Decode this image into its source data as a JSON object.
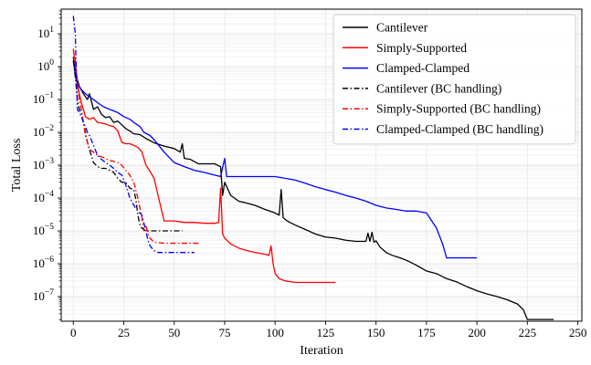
{
  "chart_data": {
    "type": "line",
    "title": "",
    "xlabel": "Iteration",
    "ylabel": "Total Loss",
    "xlim": [
      -6,
      252
    ],
    "ylim_log10": [
      -7.75,
      1.75
    ],
    "yscale": "log",
    "grid": true,
    "legend_position": "top-right",
    "xticks": [
      0,
      25,
      50,
      75,
      100,
      125,
      150,
      175,
      200,
      225,
      250
    ],
    "yticks_exp": [
      1,
      0,
      -1,
      -2,
      -3,
      -4,
      -5,
      -6,
      -7
    ],
    "ytick_base": "10",
    "series": [
      {
        "name": "Cantilever",
        "color": "#000000",
        "dash": "solid",
        "x": [
          0,
          1,
          2,
          3,
          5,
          7,
          8,
          10,
          12,
          14,
          16,
          18,
          20,
          22,
          24,
          26,
          28,
          30,
          33,
          36,
          40,
          45,
          50,
          53,
          54,
          55,
          58,
          62,
          66,
          70,
          73,
          74,
          75,
          78,
          82,
          86,
          90,
          95,
          100,
          102,
          103,
          104,
          106,
          110,
          115,
          120,
          125,
          130,
          135,
          140,
          145,
          146,
          147,
          148,
          149,
          150,
          152,
          155,
          158,
          162,
          166,
          170,
          175,
          180,
          185,
          190,
          195,
          200,
          205,
          210,
          215,
          220,
          223,
          225,
          230,
          235,
          238
        ],
        "y": [
          1.5,
          0.9,
          0.4,
          0.25,
          0.15,
          0.1,
          0.15,
          0.05,
          0.06,
          0.035,
          0.028,
          0.03,
          0.02,
          0.022,
          0.017,
          0.013,
          0.011,
          0.009,
          0.0085,
          0.0065,
          0.0048,
          0.0038,
          0.0032,
          0.0025,
          0.0045,
          0.0016,
          0.0015,
          0.0011,
          0.0011,
          0.0011,
          0.0009,
          0.00012,
          0.0003,
          0.00012,
          8e-05,
          7e-05,
          6e-05,
          4.5e-05,
          3.5e-05,
          3e-05,
          0.00018,
          2.5e-05,
          2e-05,
          1.5e-05,
          1.1e-05,
          8e-06,
          6.5e-06,
          6e-06,
          5.2e-06,
          4.8e-06,
          4.8e-06,
          8.5e-06,
          4.8e-06,
          9e-06,
          4.5e-06,
          5e-06,
          3.2e-06,
          2.2e-06,
          1.8e-06,
          1.5e-06,
          1.2e-06,
          9e-07,
          6e-07,
          5e-07,
          3.5e-07,
          2.8e-07,
          2e-07,
          1.5e-07,
          1.2e-07,
          1e-07,
          8e-08,
          6e-08,
          4e-08,
          2e-08,
          2e-08,
          2e-08,
          2e-08
        ]
      },
      {
        "name": "Simply-Supported",
        "color": "#ff0000",
        "dash": "solid",
        "x": [
          0,
          1,
          2,
          3,
          4,
          5,
          6,
          8,
          10,
          12,
          14,
          16,
          18,
          20,
          22,
          24,
          26,
          28,
          30,
          32,
          34,
          36,
          38,
          40,
          42,
          45,
          50,
          55,
          60,
          65,
          70,
          72,
          73,
          74,
          75,
          78,
          82,
          86,
          90,
          94,
          97,
          98,
          99,
          100,
          102,
          105,
          110,
          115,
          120,
          125,
          130
        ],
        "y": [
          3.0,
          1.5,
          0.3,
          0.15,
          0.08,
          0.05,
          0.03,
          0.025,
          0.028,
          0.02,
          0.019,
          0.018,
          0.016,
          0.015,
          0.011,
          0.005,
          0.0045,
          0.0045,
          0.004,
          0.0035,
          0.0025,
          0.001,
          0.00065,
          0.0004,
          0.00012,
          2e-05,
          2e-05,
          1.8e-05,
          1.8e-05,
          1.7e-05,
          1.7e-05,
          1.8e-05,
          0.0002,
          8e-06,
          6e-06,
          4e-06,
          3e-06,
          2.5e-06,
          2.2e-06,
          2e-06,
          1.8e-06,
          3.5e-06,
          1e-06,
          5e-07,
          3.5e-07,
          3e-07,
          2.7e-07,
          2.7e-07,
          2.7e-07,
          2.7e-07,
          2.7e-07
        ]
      },
      {
        "name": "Clamped-Clamped",
        "color": "#0000ff",
        "dash": "solid",
        "x": [
          0,
          1,
          2,
          4,
          6,
          8,
          10,
          12,
          15,
          18,
          20,
          22,
          25,
          28,
          30,
          33,
          35,
          38,
          40,
          45,
          50,
          55,
          60,
          65,
          70,
          73,
          75,
          76,
          80,
          85,
          90,
          95,
          100,
          105,
          110,
          115,
          120,
          125,
          130,
          135,
          140,
          145,
          150,
          155,
          160,
          165,
          170,
          175,
          180,
          183,
          185,
          190,
          195,
          200
        ],
        "y": [
          2.0,
          0.5,
          0.3,
          0.2,
          0.15,
          0.12,
          0.1,
          0.08,
          0.06,
          0.05,
          0.045,
          0.04,
          0.03,
          0.025,
          0.02,
          0.015,
          0.01,
          0.008,
          0.006,
          0.0025,
          0.0012,
          0.0009,
          0.0007,
          0.0006,
          0.0005,
          0.00045,
          0.0016,
          0.00045,
          0.00045,
          0.00045,
          0.00045,
          0.00045,
          0.00045,
          0.0004,
          0.00035,
          0.00028,
          0.00022,
          0.00018,
          0.00015,
          0.00012,
          0.0001,
          8e-05,
          6e-05,
          5e-05,
          4.5e-05,
          4e-05,
          4e-05,
          3.5e-05,
          1.2e-05,
          4e-06,
          1.5e-06,
          1.5e-06,
          1.5e-06,
          1.5e-06
        ]
      },
      {
        "name": "Cantilever (BC handling)",
        "color": "#000000",
        "dash": "dashdot",
        "x": [
          0,
          1,
          2,
          3,
          4,
          5,
          6,
          7,
          8,
          10,
          12,
          14,
          16,
          18,
          20,
          22,
          24,
          26,
          28,
          30,
          31,
          32,
          33,
          34,
          36,
          40,
          45,
          50,
          54
        ],
        "y": [
          1.5,
          0.5,
          0.1,
          0.05,
          0.04,
          0.02,
          0.01,
          0.005,
          0.003,
          0.0012,
          0.0009,
          0.0008,
          0.0008,
          0.0007,
          0.0006,
          0.0004,
          0.0003,
          0.0003,
          0.0002,
          0.00018,
          9e-05,
          3e-05,
          1.5e-05,
          1.2e-05,
          1e-05,
          1e-05,
          1e-05,
          1e-05,
          1e-05
        ]
      },
      {
        "name": "Simply-Supported (BC handling)",
        "color": "#ff0000",
        "dash": "dashdot",
        "x": [
          0,
          1,
          2,
          3,
          4,
          5,
          6,
          7,
          8,
          10,
          12,
          15,
          18,
          20,
          22,
          24,
          26,
          28,
          30,
          32,
          34,
          35,
          36,
          37,
          38,
          40,
          45,
          50,
          55,
          62
        ],
        "y": [
          3.5,
          1.2,
          0.3,
          0.1,
          0.05,
          0.02,
          0.008,
          0.005,
          0.003,
          0.0025,
          0.002,
          0.0017,
          0.0014,
          0.0013,
          0.0012,
          0.001,
          0.0007,
          0.0005,
          0.0003,
          0.0001,
          2.5e-05,
          1e-05,
          1.5e-05,
          8e-06,
          6e-06,
          4.5e-06,
          4.2e-06,
          4.2e-06,
          4.2e-06,
          4.2e-06
        ]
      },
      {
        "name": "Clamped-Clamped (BC handling)",
        "color": "#0000ff",
        "dash": "dashdot",
        "x": [
          0,
          1,
          2,
          3,
          4,
          5,
          6,
          7,
          8,
          10,
          12,
          14,
          16,
          18,
          20,
          22,
          24,
          26,
          28,
          30,
          32,
          34,
          36,
          37,
          38,
          40,
          42,
          45,
          50,
          55,
          60
        ],
        "y": [
          35,
          10,
          0.05,
          0.04,
          0.03,
          0.02,
          0.015,
          0.01,
          0.008,
          0.004,
          0.002,
          0.0015,
          0.0012,
          0.001,
          0.0008,
          0.0006,
          0.0005,
          0.00025,
          0.0001,
          6e-05,
          4e-05,
          3e-05,
          1e-05,
          5e-06,
          3.5e-06,
          2.5e-06,
          2.2e-06,
          2.2e-06,
          2.2e-06,
          2.2e-06,
          2.2e-06
        ]
      }
    ]
  }
}
